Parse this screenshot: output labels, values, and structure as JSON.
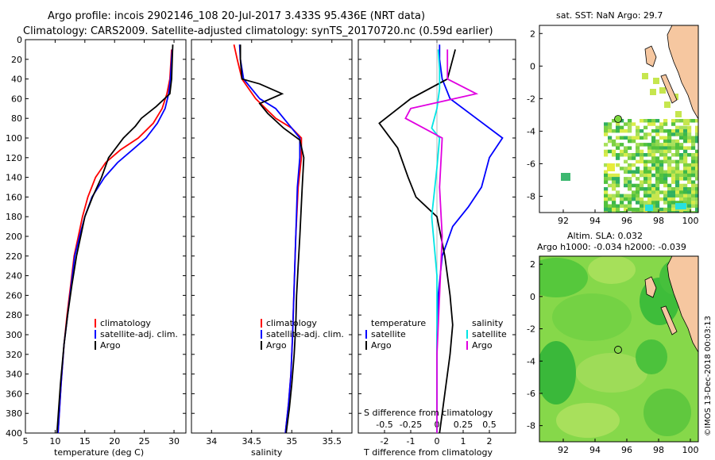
{
  "header": {
    "line1": "Argo profile: incois 2902146_108 20-Jul-2017 3.433S 95.436E (NRT data)",
    "line2": "Climatology: CARS2009. Satellite-adjusted climatology: synTS_20170720.nc (0.59d earlier)"
  },
  "colors": {
    "clim": "#ff0000",
    "sat": "#0000ff",
    "argo": "#000000",
    "sat_s": "#00e5e5",
    "argo_s": "#e000e0"
  },
  "chart_data": [
    {
      "type": "line",
      "id": "temperature",
      "xlabel": "temperature (deg C)",
      "ylabel": "",
      "xlim": [
        5,
        32
      ],
      "ylim": [
        400,
        0
      ],
      "xticks": [
        "5",
        "10",
        "15",
        "20",
        "25",
        "30"
      ],
      "yticks": [
        "0",
        "20",
        "40",
        "60",
        "80",
        "100",
        "120",
        "140",
        "160",
        "180",
        "200",
        "220",
        "240",
        "260",
        "280",
        "300",
        "320",
        "340",
        "360",
        "380",
        "400"
      ],
      "series": [
        {
          "name": "climatology",
          "color": "#ff0000",
          "x": [
            29.6,
            29.5,
            29.3,
            28.8,
            28,
            26.5,
            24,
            21,
            18.5,
            16.8,
            15.5,
            14.6,
            13.9,
            13.2,
            12.6,
            12,
            11.5,
            11,
            10.5
          ],
          "y": [
            10,
            20,
            40,
            55,
            70,
            85,
            100,
            112,
            125,
            140,
            160,
            180,
            200,
            220,
            250,
            280,
            310,
            350,
            400
          ]
        },
        {
          "name": "satellite-adj. clim.",
          "color": "#0000ff",
          "x": [
            29.7,
            29.6,
            29.4,
            29.1,
            28.5,
            27.2,
            25.3,
            23,
            20.5,
            18.3,
            16.2,
            15,
            14.1,
            13.3,
            12.7,
            12.1,
            11.5,
            11,
            10.5
          ],
          "y": [
            10,
            20,
            40,
            55,
            70,
            85,
            100,
            112,
            125,
            140,
            160,
            180,
            200,
            220,
            250,
            280,
            310,
            350,
            400
          ]
        },
        {
          "name": "Argo",
          "color": "#000000",
          "x": [
            29.8,
            29.7,
            29.6,
            29.3,
            27,
            24.5,
            23.5,
            21.5,
            19,
            17.8,
            16.3,
            15,
            14.3,
            13.6,
            12.8,
            12.1,
            11.5,
            10.9,
            10.3
          ],
          "y": [
            5,
            20,
            40,
            55,
            68,
            80,
            88,
            100,
            120,
            140,
            160,
            180,
            200,
            220,
            250,
            280,
            310,
            350,
            400
          ]
        }
      ],
      "legend": {
        "entries": [
          "climatology",
          "satellite-adj. clim.",
          "Argo"
        ],
        "colors": [
          "#ff0000",
          "#0000ff",
          "#000000"
        ],
        "placement": "lower-right"
      }
    },
    {
      "type": "line",
      "id": "salinity",
      "xlabel": "salinity",
      "ylabel": "",
      "xlim": [
        33.75,
        35.75
      ],
      "ylim": [
        400,
        0
      ],
      "xticks": [
        "34",
        "34.5",
        "35",
        "35.5"
      ],
      "series": [
        {
          "name": "climatology",
          "color": "#ff0000",
          "x": [
            34.28,
            34.32,
            34.38,
            34.55,
            34.8,
            35.0,
            35.12,
            35.12,
            35.08,
            35.05,
            35.03,
            35.01,
            34.99,
            34.96,
            34.92
          ],
          "y": [
            5,
            20,
            40,
            60,
            80,
            90,
            100,
            120,
            150,
            200,
            250,
            300,
            340,
            370,
            400
          ]
        },
        {
          "name": "satellite-adj. clim.",
          "color": "#0000ff",
          "x": [
            34.35,
            34.36,
            34.4,
            34.6,
            34.8,
            34.95,
            35.1,
            35.1,
            35.07,
            35.05,
            35.03,
            35.01,
            34.99,
            34.96,
            34.92
          ],
          "y": [
            5,
            20,
            40,
            60,
            70,
            85,
            100,
            120,
            150,
            200,
            250,
            300,
            340,
            370,
            400
          ]
        },
        {
          "name": "Argo",
          "color": "#000000",
          "x": [
            34.36,
            34.36,
            34.38,
            34.6,
            34.88,
            34.6,
            34.7,
            34.9,
            35.1,
            35.15,
            35.13,
            35.1,
            35.08,
            35.06,
            35.05,
            35.03,
            35.0,
            34.97,
            34.93
          ],
          "y": [
            5,
            20,
            40,
            45,
            55,
            65,
            75,
            90,
            102,
            120,
            150,
            200,
            230,
            260,
            290,
            320,
            350,
            375,
            400
          ]
        }
      ],
      "legend": {
        "entries": [
          "climatology",
          "satellite-adj. clim.",
          "Argo"
        ],
        "colors": [
          "#ff0000",
          "#0000ff",
          "#000000"
        ],
        "placement": "lower-right"
      }
    },
    {
      "type": "line",
      "id": "differences",
      "xlabel": "T difference from climatology",
      "x2label": "S difference from climatology",
      "xlim": [
        -3,
        3
      ],
      "ylim": [
        400,
        0
      ],
      "xticks": [
        "-2",
        "-1",
        "0",
        "1",
        "2"
      ],
      "x2ticks": [
        "-0.5",
        "-0.25",
        "0",
        "0.25",
        "0.5"
      ],
      "series": [
        {
          "name": "temperature satellite",
          "color": "#0000ff",
          "x": [
            0.1,
            0.1,
            0.2,
            0.5,
            1.5,
            2.5,
            2.0,
            1.7,
            1.2,
            0.6,
            0.2,
            0.05,
            0,
            0,
            0
          ],
          "y": [
            5,
            20,
            40,
            60,
            80,
            100,
            120,
            150,
            170,
            190,
            220,
            260,
            300,
            350,
            400
          ]
        },
        {
          "name": "temperature Argo",
          "color": "#000000",
          "x": [
            0.7,
            0.6,
            0.4,
            -1,
            -2.2,
            -1.5,
            -1.1,
            -0.8,
            0,
            0.3,
            0.5,
            0.6,
            0.5,
            0.3,
            0.1
          ],
          "y": [
            10,
            20,
            40,
            60,
            85,
            110,
            140,
            160,
            180,
            220,
            260,
            290,
            320,
            360,
            400
          ]
        },
        {
          "name": "salinity satellite",
          "color": "#00e5e5",
          "x": [
            0.05,
            0.1,
            0.1,
            0,
            -0.2,
            0.1,
            0,
            -0.2,
            0,
            0,
            0,
            0
          ],
          "y": [
            10,
            30,
            50,
            70,
            90,
            100,
            130,
            180,
            240,
            300,
            350,
            400
          ]
        },
        {
          "name": "salinity Argo",
          "color": "#e000e0",
          "x": [
            0.4,
            0.4,
            1.5,
            -1,
            -1.2,
            0.2,
            0.1,
            0.2,
            0.1,
            0,
            0
          ],
          "y": [
            10,
            40,
            55,
            70,
            80,
            100,
            150,
            200,
            260,
            320,
            400
          ]
        }
      ],
      "legend": {
        "header_left": "temperature",
        "header_right": "salinity",
        "entries_left": [
          "satellite",
          "Argo"
        ],
        "entries_right": [
          "satellite",
          "Argo"
        ],
        "placement": "lower-right"
      }
    }
  ],
  "maps": {
    "sst": {
      "title": "sat. SST: NaN Argo: 29.7",
      "xticks": [
        "92",
        "94",
        "96",
        "98",
        "100"
      ],
      "yticks": [
        "2",
        "0",
        "-2",
        "-4",
        "-6",
        "-8"
      ]
    },
    "sla": {
      "title1": "Altim. SLA: 0.032",
      "title2": "Argo h1000: -0.034 h2000: -0.039",
      "xticks": [
        "92",
        "94",
        "96",
        "98",
        "100"
      ],
      "yticks": [
        "2",
        "0",
        "-2",
        "-4",
        "-6",
        "-8"
      ]
    }
  },
  "watermark": "©IMOS 13-Dec-2018 00:03:13"
}
